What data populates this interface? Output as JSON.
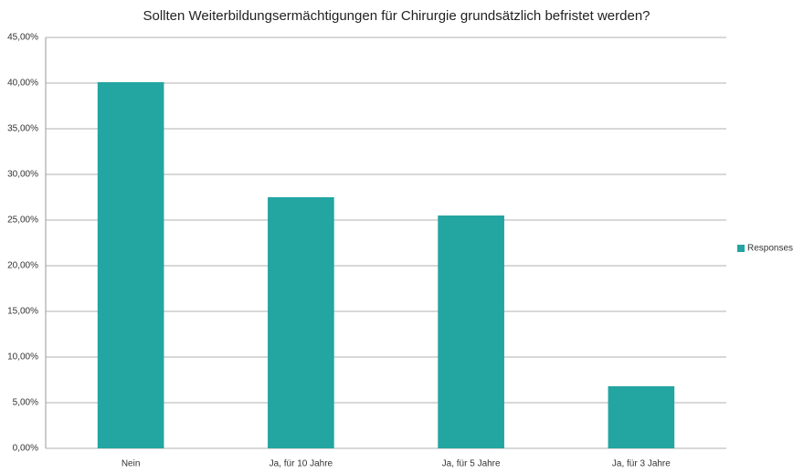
{
  "chart_data": {
    "type": "bar",
    "title": "Sollten Weiterbildungsermächtigungen für Chirurgie grundsätzlich befristet werden?",
    "categories": [
      "Nein",
      "Ja, für 10 Jahre",
      "Ja, für 5 Jahre",
      "Ja, für 3 Jahre"
    ],
    "series": [
      {
        "name": "Responses",
        "color": "#23a5a2",
        "values": [
          40.1,
          27.5,
          25.5,
          6.8
        ]
      }
    ],
    "ylim": [
      0,
      45
    ],
    "yticks": [
      {
        "value": 0,
        "label": "0,00%"
      },
      {
        "value": 5,
        "label": "5,00%"
      },
      {
        "value": 10,
        "label": "10,00%"
      },
      {
        "value": 15,
        "label": "15,00%"
      },
      {
        "value": 20,
        "label": "20,00%"
      },
      {
        "value": 25,
        "label": "25,00%"
      },
      {
        "value": 30,
        "label": "30,00%"
      },
      {
        "value": 35,
        "label": "35,00%"
      },
      {
        "value": 40,
        "label": "40,00%"
      },
      {
        "value": 45,
        "label": "45,00%"
      }
    ],
    "grid": true,
    "legend": "right"
  }
}
